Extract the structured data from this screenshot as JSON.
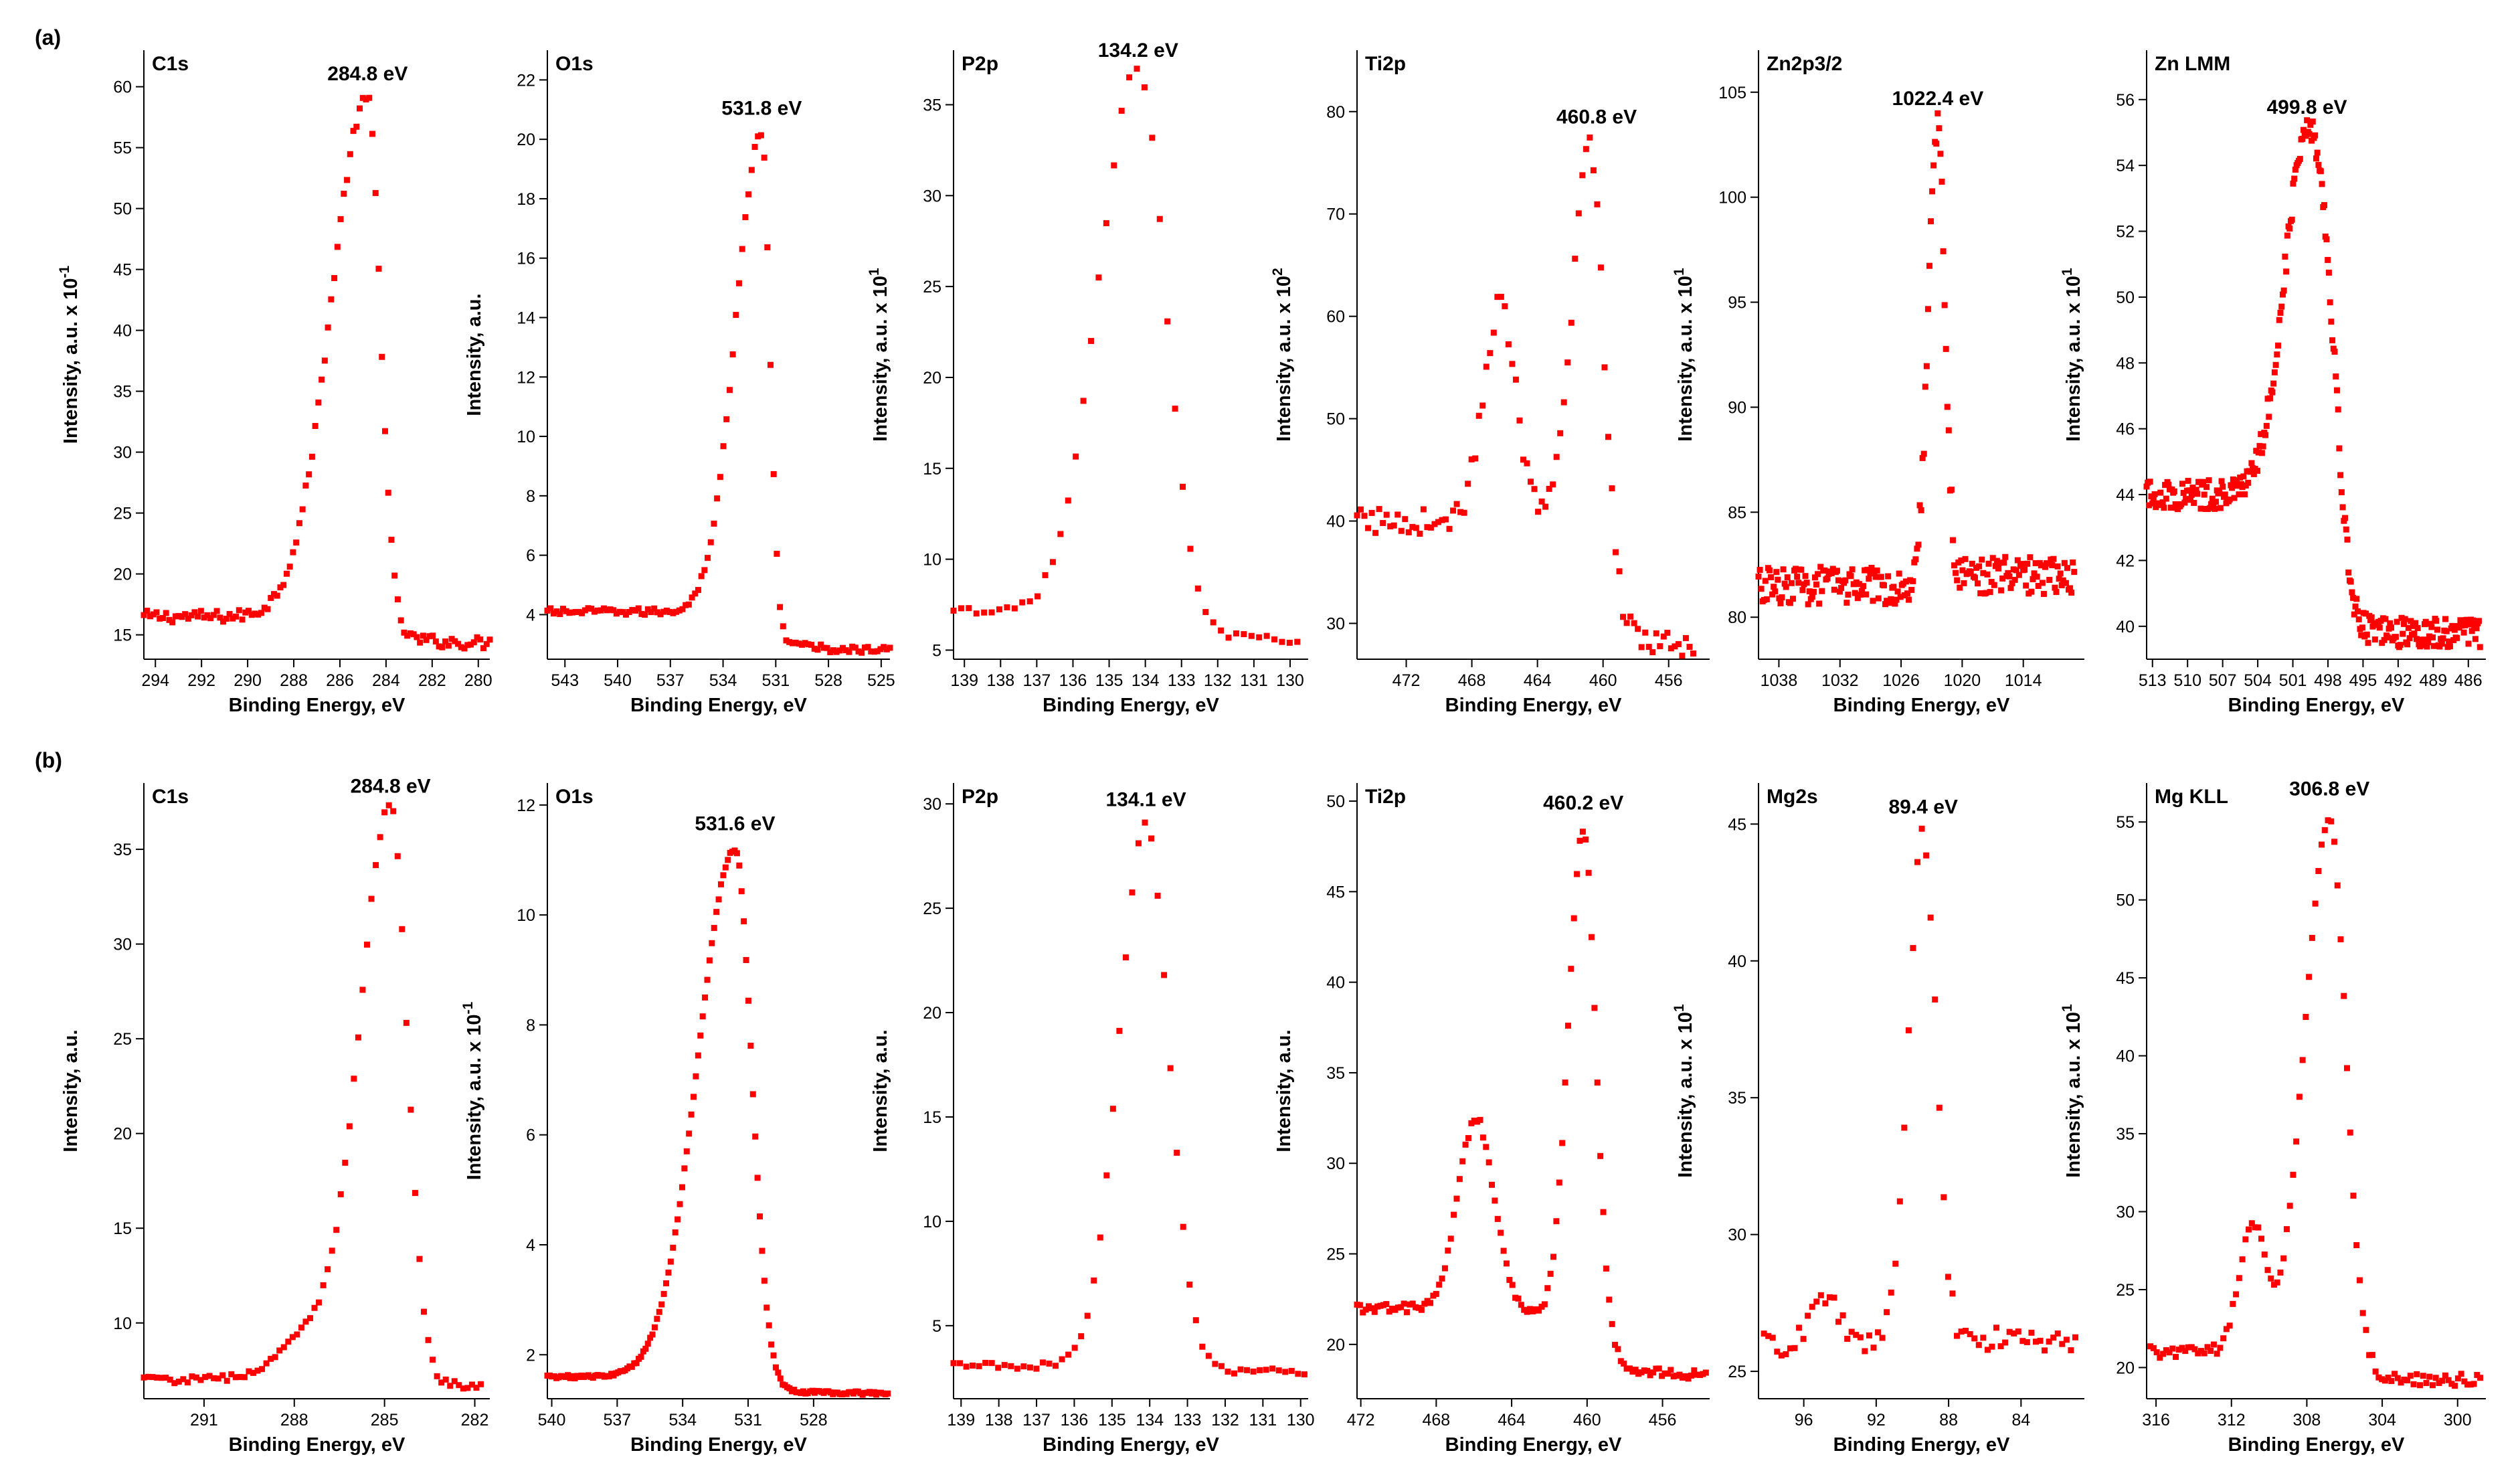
{
  "row_labels": [
    "(a)",
    "(b)"
  ],
  "style": {
    "marker_color": "#ff0000",
    "axis_color": "#000000"
  },
  "chart_data": [
    {
      "row": 0,
      "type": "scatter",
      "title": "C1s",
      "peak_label": "284.8 eV",
      "peak": 284.8,
      "xlabel": "Binding Energy, eV",
      "ylabel": "Intensity, a.u. x 10",
      "ylabel_sup": "-1",
      "xlim": [
        294.5,
        279.5
      ],
      "ylim": [
        13,
        63
      ],
      "xticks": [
        294,
        292,
        290,
        288,
        286,
        284,
        282,
        280
      ],
      "yticks": [
        15,
        20,
        25,
        30,
        35,
        40,
        45,
        50,
        55,
        60
      ],
      "baseline_left": 16.5,
      "baseline_right": 14.3,
      "peak_height": 59,
      "width_left": 1.6,
      "width_right": 0.55,
      "noise": 0.5,
      "points": 110,
      "x_range": [
        294.5,
        279.5
      ],
      "features": []
    },
    {
      "row": 0,
      "type": "scatter",
      "title": "O1s",
      "peak_label": "531.8 eV",
      "peak": 531.8,
      "xlabel": "Binding Energy, eV",
      "ylabel": "Intensity, a.u.",
      "ylabel_sup": "",
      "xlim": [
        544,
        524.5
      ],
      "ylim": [
        2.5,
        23
      ],
      "xticks": [
        543,
        540,
        537,
        534,
        531,
        528,
        525
      ],
      "yticks": [
        4,
        6,
        8,
        10,
        12,
        14,
        16,
        18,
        20,
        22
      ],
      "baseline_left": 4.1,
      "baseline_right": 2.8,
      "peak_height": 20.2,
      "width_left": 1.5,
      "width_right": 0.45,
      "noise": 0.12,
      "points": 110,
      "x_range": [
        544,
        524.5
      ],
      "features": []
    },
    {
      "row": 0,
      "type": "scatter",
      "title": "P2p",
      "peak_label": "134.2 eV",
      "peak": 134.2,
      "xlabel": "Binding Energy, eV",
      "ylabel": "Intensity, a.u. x 10",
      "ylabel_sup": "1",
      "xlim": [
        139.3,
        129.5
      ],
      "ylim": [
        4.5,
        38
      ],
      "xticks": [
        139,
        138,
        137,
        136,
        135,
        134,
        133,
        132,
        131,
        130
      ],
      "yticks": [
        5,
        10,
        15,
        20,
        25,
        30,
        35
      ],
      "baseline_left": 7.1,
      "baseline_right": 5.6,
      "peak_height": 37,
      "width_left": 1.1,
      "width_right": 0.75,
      "noise": 0.25,
      "points": 46,
      "x_range": [
        139.3,
        129.8
      ],
      "features": []
    },
    {
      "row": 0,
      "type": "scatter",
      "title": "Ti2p",
      "peak_label": "460.8 eV",
      "peak": 460.8,
      "xlabel": "Binding Energy, eV",
      "ylabel": "Intensity, a.u. x 10",
      "ylabel_sup": "2",
      "xlim": [
        475,
        453.5
      ],
      "ylim": [
        26.5,
        86
      ],
      "xticks": [
        472,
        468,
        464,
        460,
        456
      ],
      "yticks": [
        30,
        40,
        50,
        60,
        70,
        80
      ],
      "baseline_left": 40,
      "baseline_right": 28,
      "peak_height": 77,
      "width_left": 1.1,
      "width_right": 0.8,
      "noise": 1.3,
      "points": 92,
      "x_range": [
        475,
        454.5
      ],
      "features": [
        {
          "center": 466.3,
          "height": 21,
          "width": 1.0
        }
      ]
    },
    {
      "row": 0,
      "type": "scatter",
      "title": "Zn2p3/2",
      "peak_label": "1022.4 eV",
      "peak": 1022.4,
      "xlabel": "Binding Energy, eV",
      "ylabel": "Intensity, a.u. x 10",
      "ylabel_sup": "1",
      "xlim": [
        1040,
        1008
      ],
      "ylim": [
        78,
        107
      ],
      "xticks": [
        1038,
        1032,
        1026,
        1020,
        1014
      ],
      "yticks": [
        80,
        85,
        90,
        95,
        100,
        105
      ],
      "baseline_left": 81.5,
      "baseline_right": 82,
      "peak_height": 103.5,
      "width_left": 0.9,
      "width_right": 0.7,
      "noise": 0.9,
      "points": 230,
      "x_range": [
        1040,
        1009
      ],
      "features": []
    },
    {
      "row": 0,
      "type": "scatter",
      "title": "Zn LMM",
      "peak_label": "499.8 eV",
      "peak": 499.8,
      "xlabel": "Binding Energy, eV",
      "ylabel": "Intensity, a.u. x 10",
      "ylabel_sup": "1",
      "xlim": [
        513.5,
        484.5
      ],
      "ylim": [
        39,
        57.5
      ],
      "xticks": [
        513,
        510,
        507,
        504,
        501,
        498,
        495,
        492,
        489,
        486
      ],
      "yticks": [
        40,
        42,
        44,
        46,
        48,
        50,
        52,
        54,
        56
      ],
      "baseline_left": 44,
      "baseline_right": 39.8,
      "peak_height": 55,
      "width_left": 2.0,
      "width_right": 1.6,
      "noise": 0.45,
      "points": 290,
      "x_range": [
        513.5,
        485
      ],
      "features": [
        {
          "center": 497.8,
          "height": 3,
          "width": 0.9
        }
      ]
    },
    {
      "row": 1,
      "type": "scatter",
      "title": "C1s",
      "peak_label": "284.8 eV",
      "peak": 284.8,
      "xlabel": "Binding Energy, eV",
      "ylabel": "Intensity, a.u.",
      "ylabel_sup": "",
      "xlim": [
        293,
        281.5
      ],
      "ylim": [
        6,
        38.5
      ],
      "xticks": [
        291,
        288,
        285,
        282
      ],
      "yticks": [
        10,
        15,
        20,
        25,
        30,
        35
      ],
      "baseline_left": 7,
      "baseline_right": 6.7,
      "peak_height": 37,
      "width_left": 1.0,
      "width_right": 0.55,
      "noise": 0.2,
      "points": 78,
      "x_range": [
        293,
        281.8
      ],
      "features": [
        {
          "center": 287.2,
          "height": 2.5,
          "width": 1.2
        }
      ]
    },
    {
      "row": 1,
      "type": "scatter",
      "title": "O1s",
      "peak_label": "531.6 eV",
      "peak": 531.6,
      "xlabel": "Binding Energy, eV",
      "ylabel": "Intensity, a.u. x 10",
      "ylabel_sup": "-1",
      "xlim": [
        540.2,
        524.5
      ],
      "ylim": [
        1.2,
        12.4
      ],
      "xticks": [
        540,
        537,
        534,
        531,
        528
      ],
      "yticks": [
        2,
        4,
        6,
        8,
        10,
        12
      ],
      "baseline_left": 1.6,
      "baseline_right": 1.3,
      "peak_height": 11.2,
      "width_left": 1.7,
      "width_right": 0.75,
      "noise": 0.03,
      "points": 150,
      "x_range": [
        540.2,
        524.6
      ],
      "features": []
    },
    {
      "row": 1,
      "type": "scatter",
      "title": "P2p",
      "peak_label": "134.1 eV",
      "peak": 134.1,
      "xlabel": "Binding Energy, eV",
      "ylabel": "Intensity, a.u.",
      "ylabel_sup": "",
      "xlim": [
        139.2,
        129.8
      ],
      "ylim": [
        1.5,
        31
      ],
      "xticks": [
        139,
        138,
        137,
        136,
        135,
        134,
        133,
        132,
        131,
        130
      ],
      "yticks": [
        5,
        10,
        15,
        20,
        25,
        30
      ],
      "baseline_left": 3.1,
      "baseline_right": 2.8,
      "peak_height": 29,
      "width_left": 0.72,
      "width_right": 0.6,
      "noise": 0.15,
      "points": 56,
      "x_range": [
        139.2,
        129.9
      ],
      "features": []
    },
    {
      "row": 1,
      "type": "scatter",
      "title": "Ti2p",
      "peak_label": "460.2 eV",
      "peak": 460.2,
      "xlabel": "Binding Energy, eV",
      "ylabel": "Intensity, a.u.",
      "ylabel_sup": "",
      "xlim": [
        472.2,
        453.5
      ],
      "ylim": [
        17,
        51
      ],
      "xticks": [
        472,
        468,
        464,
        460,
        456
      ],
      "yticks": [
        20,
        25,
        30,
        35,
        40,
        45,
        50
      ],
      "baseline_left": 22,
      "baseline_right": 18.3,
      "peak_height": 48.5,
      "width_left": 0.8,
      "width_right": 0.65,
      "noise": 0.25,
      "points": 120,
      "x_range": [
        472.2,
        453.7
      ],
      "features": [
        {
          "center": 465.9,
          "height": 10.5,
          "width": 0.95
        }
      ]
    },
    {
      "row": 1,
      "type": "scatter",
      "title": "Mg2s",
      "peak_label": "89.4 eV",
      "peak": 89.4,
      "xlabel": "Binding Energy, eV",
      "ylabel": "Intensity, a.u. x 10",
      "ylabel_sup": "1",
      "xlim": [
        98.5,
        80.5
      ],
      "ylim": [
        24,
        46.5
      ],
      "xticks": [
        96,
        92,
        88,
        84
      ],
      "yticks": [
        25,
        30,
        35,
        40,
        45
      ],
      "baseline_left": 26,
      "baseline_right": 26.2,
      "peak_height": 44.7,
      "width_left": 0.8,
      "width_right": 0.7,
      "noise": 0.45,
      "points": 72,
      "x_range": [
        98.2,
        81
      ],
      "features": [
        {
          "center": 94.8,
          "height": 1.8,
          "width": 0.7
        }
      ]
    },
    {
      "row": 1,
      "type": "scatter",
      "title": "Mg KLL",
      "peak_label": "306.8 eV",
      "peak": 306.8,
      "xlabel": "Binding Energy, eV",
      "ylabel": "Intensity, a.u. x 10",
      "ylabel_sup": "1",
      "xlim": [
        316.5,
        298.5
      ],
      "ylim": [
        18,
        57.5
      ],
      "xticks": [
        316,
        312,
        308,
        304,
        300
      ],
      "yticks": [
        20,
        25,
        30,
        35,
        40,
        45,
        50,
        55
      ],
      "baseline_left": 21,
      "baseline_right": 19.2,
      "peak_height": 55.5,
      "width_left": 1.3,
      "width_right": 0.85,
      "noise": 0.4,
      "points": 105,
      "x_range": [
        316.3,
        298.8
      ],
      "features": [
        {
          "center": 310.9,
          "height": 8,
          "width": 0.7
        }
      ]
    }
  ]
}
